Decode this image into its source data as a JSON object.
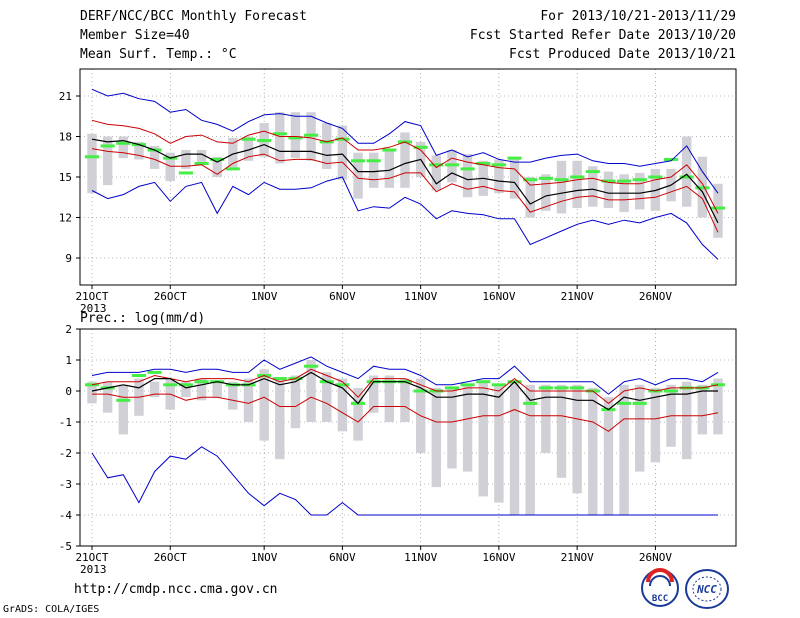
{
  "header": {
    "title": "DERF/NCC/BCC Monthly Forecast",
    "member": "Member Size=40",
    "variable": "Mean Surf. Temp.: °C",
    "period": "For 2013/10/21-2013/11/29",
    "start": "Fcst Started Refer Date 2013/10/20",
    "produced": "Fcst Produced Date 2013/10/21"
  },
  "footer": {
    "url": "http://cmdp.ncc.cma.gov.cn",
    "credit": "GrADS: COLA/IGES",
    "logo1": "BCC",
    "logo2": "NCC"
  },
  "colors": {
    "max": "#0000cc",
    "pct": "#cc0000",
    "mean": "#000000",
    "box": "#d0d0d6",
    "obs": "#44ee44",
    "grid": "#777777"
  },
  "chart_data": [
    {
      "type": "line",
      "ylabel": "Mean Surf. Temp.: °C",
      "ylim": [
        7,
        23
      ],
      "yticks": [
        9,
        12,
        15,
        18,
        21
      ],
      "xticks": [
        {
          "day": 0,
          "label": "21OCT"
        },
        {
          "day": 5,
          "label": "26OCT"
        },
        {
          "day": 11,
          "label": "1NOV"
        },
        {
          "day": 16,
          "label": "6NOV"
        },
        {
          "day": 21,
          "label": "11NOV"
        },
        {
          "day": 26,
          "label": "16NOV"
        },
        {
          "day": 31,
          "label": "21NOV"
        },
        {
          "day": 36,
          "label": "26NOV"
        }
      ],
      "year_label": "2013",
      "grid": true,
      "days": 40,
      "series": {
        "max": [
          21.5,
          21.0,
          21.2,
          20.8,
          20.6,
          19.8,
          20.0,
          19.2,
          18.9,
          18.4,
          19.1,
          19.6,
          19.7,
          19.5,
          19.5,
          19.0,
          18.6,
          17.5,
          17.5,
          18.2,
          19.1,
          18.8,
          16.6,
          17.0,
          16.5,
          16.8,
          16.3,
          16.1,
          16.1,
          16.4,
          16.6,
          16.7,
          16.2,
          16.0,
          16.0,
          15.8,
          16.0,
          16.2,
          17.3,
          15.4,
          13.8
        ],
        "p90": [
          19.2,
          18.9,
          18.8,
          18.6,
          18.2,
          17.5,
          18.0,
          18.1,
          17.6,
          17.5,
          18.1,
          18.4,
          18.0,
          18.0,
          17.9,
          17.6,
          17.9,
          17.0,
          17.0,
          17.2,
          17.6,
          17.0,
          15.7,
          16.4,
          16.1,
          15.9,
          15.7,
          15.6,
          14.4,
          14.5,
          14.6,
          14.8,
          14.9,
          14.6,
          14.5,
          14.5,
          14.8,
          15.0,
          15.9,
          14.5,
          12.3
        ],
        "mean": [
          17.8,
          17.6,
          17.7,
          17.4,
          17.0,
          16.4,
          16.7,
          16.7,
          16.1,
          16.7,
          17.0,
          17.4,
          16.9,
          16.9,
          16.9,
          16.6,
          16.7,
          15.4,
          15.4,
          15.5,
          16.0,
          16.3,
          14.5,
          15.3,
          14.8,
          14.9,
          14.7,
          14.6,
          13.0,
          13.6,
          13.8,
          14.0,
          14.1,
          13.8,
          13.8,
          13.8,
          14.0,
          14.4,
          15.2,
          13.9,
          11.6
        ],
        "p10": [
          17.1,
          16.9,
          16.8,
          16.6,
          16.3,
          15.8,
          15.8,
          15.9,
          15.2,
          16.0,
          16.5,
          16.7,
          16.2,
          16.3,
          16.3,
          16.0,
          16.1,
          14.9,
          14.8,
          14.9,
          15.3,
          15.3,
          13.9,
          14.5,
          14.1,
          14.3,
          14.0,
          13.9,
          12.4,
          12.8,
          13.2,
          13.5,
          13.6,
          13.3,
          13.3,
          13.4,
          13.5,
          13.9,
          14.3,
          13.4,
          10.9
        ],
        "min": [
          14.0,
          13.4,
          13.7,
          14.3,
          14.6,
          13.2,
          14.3,
          14.6,
          12.3,
          14.3,
          13.7,
          14.6,
          14.1,
          14.1,
          14.2,
          14.7,
          15.0,
          12.5,
          12.8,
          12.7,
          13.5,
          13.0,
          11.9,
          12.5,
          12.3,
          12.2,
          11.9,
          11.9,
          10.0,
          10.5,
          11.0,
          11.5,
          11.8,
          11.5,
          11.8,
          11.6,
          12.0,
          12.3,
          11.6,
          10.0,
          8.9
        ],
        "box_top": [
          18.2,
          18.0,
          18.0,
          17.6,
          17.3,
          16.8,
          17.0,
          17.0,
          16.5,
          17.9,
          18.0,
          19.0,
          19.8,
          19.8,
          19.8,
          19.0,
          18.8,
          16.8,
          16.8,
          17.0,
          18.3,
          17.6,
          16.6,
          17.0,
          16.7,
          16.2,
          16.3,
          16.3,
          15.0,
          15.2,
          16.2,
          16.2,
          15.8,
          15.4,
          15.2,
          15.3,
          15.6,
          15.6,
          18.0,
          16.5,
          14.5
        ],
        "box_bot": [
          13.8,
          14.4,
          16.4,
          16.3,
          15.6,
          14.7,
          15.6,
          16.0,
          15.0,
          15.6,
          16.2,
          16.5,
          16.0,
          16.4,
          16.2,
          15.6,
          14.8,
          13.4,
          14.2,
          14.2,
          14.2,
          15.0,
          14.0,
          14.6,
          13.5,
          13.6,
          13.8,
          13.4,
          12.0,
          12.5,
          12.3,
          12.7,
          12.8,
          12.7,
          12.4,
          12.6,
          12.5,
          13.2,
          12.8,
          12.0,
          10.5
        ],
        "obs": [
          16.5,
          17.3,
          17.5,
          17.4,
          17.0,
          16.4,
          15.3,
          16.0,
          16.3,
          15.6,
          17.8,
          17.7,
          18.2,
          17.9,
          18.1,
          17.6,
          17.8,
          16.2,
          16.2,
          17.0,
          17.6,
          17.2,
          15.9,
          15.9,
          15.6,
          16.0,
          15.9,
          16.4,
          14.8,
          14.9,
          14.8,
          15.0,
          15.4,
          14.7,
          14.7,
          14.8,
          15.0,
          16.3,
          15.0,
          14.2,
          12.7
        ]
      }
    },
    {
      "type": "line",
      "ylabel": "Prec.: log(mm/d)",
      "ylim": [
        -5,
        2
      ],
      "yticks": [
        -5,
        -4,
        -3,
        -2,
        -1,
        0,
        1,
        2
      ],
      "xticks": [
        {
          "day": 0,
          "label": "21OCT"
        },
        {
          "day": 5,
          "label": "26OCT"
        },
        {
          "day": 11,
          "label": "1NOV"
        },
        {
          "day": 16,
          "label": "6NOV"
        },
        {
          "day": 21,
          "label": "11NOV"
        },
        {
          "day": 26,
          "label": "16NOV"
        },
        {
          "day": 31,
          "label": "21NOV"
        },
        {
          "day": 36,
          "label": "26NOV"
        }
      ],
      "year_label": "2013",
      "grid": true,
      "days": 40,
      "series": {
        "max": [
          0.5,
          0.6,
          0.6,
          0.6,
          0.7,
          0.7,
          0.6,
          0.7,
          0.7,
          0.6,
          0.6,
          1.0,
          0.7,
          0.9,
          1.1,
          0.8,
          0.6,
          0.4,
          0.8,
          0.7,
          0.7,
          0.5,
          0.2,
          0.2,
          0.3,
          0.4,
          0.4,
          0.8,
          0.3,
          0.3,
          0.3,
          0.3,
          0.3,
          -0.1,
          0.3,
          0.4,
          0.2,
          0.4,
          0.4,
          0.3,
          0.6
        ],
        "p90": [
          0.2,
          0.3,
          0.3,
          0.3,
          0.5,
          0.4,
          0.3,
          0.4,
          0.4,
          0.4,
          0.3,
          0.5,
          0.3,
          0.4,
          0.7,
          0.5,
          0.3,
          -0.2,
          0.4,
          0.4,
          0.4,
          0.2,
          0.0,
          0.0,
          0.1,
          0.1,
          0.0,
          0.4,
          0.0,
          0.0,
          0.0,
          0.0,
          0.0,
          -0.4,
          0.0,
          0.1,
          0.0,
          0.1,
          0.1,
          0.1,
          0.2
        ],
        "mean": [
          0.0,
          0.1,
          0.2,
          0.1,
          0.4,
          0.4,
          0.1,
          0.2,
          0.3,
          0.2,
          0.2,
          0.4,
          0.2,
          0.3,
          0.6,
          0.3,
          0.1,
          -0.4,
          0.3,
          0.3,
          0.3,
          0.1,
          -0.2,
          -0.2,
          -0.1,
          -0.1,
          -0.2,
          0.3,
          -0.3,
          -0.2,
          -0.2,
          -0.3,
          -0.3,
          -0.6,
          -0.2,
          -0.3,
          -0.2,
          -0.1,
          -0.1,
          0.0,
          0.0
        ],
        "p10": [
          -0.1,
          -0.1,
          -0.2,
          -0.2,
          -0.1,
          -0.1,
          -0.3,
          -0.2,
          -0.2,
          -0.3,
          -0.4,
          -0.2,
          -0.5,
          -0.5,
          -0.2,
          -0.4,
          -0.7,
          -1.0,
          -0.5,
          -0.5,
          -0.5,
          -0.8,
          -1.0,
          -1.0,
          -0.9,
          -0.8,
          -0.8,
          -0.6,
          -0.8,
          -0.8,
          -0.8,
          -0.9,
          -1.0,
          -1.3,
          -0.9,
          -0.9,
          -0.9,
          -0.8,
          -0.8,
          -0.8,
          -0.7
        ],
        "min": [
          -2.0,
          -2.8,
          -2.7,
          -3.6,
          -2.6,
          -2.1,
          -2.2,
          -1.8,
          -2.1,
          -2.7,
          -3.3,
          -3.7,
          -3.3,
          -3.5,
          -4.0,
          -4.0,
          -3.6,
          -4.0,
          -4.0,
          -4.0,
          -4.0,
          -4.0,
          -4.0,
          -4.0,
          -4.0,
          -4.0,
          -4.0,
          -4.0,
          -4.0,
          -4.0,
          -4.0,
          -4.0,
          -4.0,
          -4.0,
          -4.0,
          -4.0,
          -4.0,
          -4.0,
          -4.0,
          -4.0,
          -4.0
        ],
        "box_top": [
          0.3,
          0.3,
          0.2,
          0.4,
          0.3,
          0.4,
          0.3,
          0.4,
          0.3,
          0.3,
          0.4,
          0.7,
          0.4,
          0.5,
          1.0,
          0.6,
          0.4,
          0.1,
          0.5,
          0.5,
          0.4,
          0.4,
          0.1,
          0.1,
          0.2,
          0.3,
          0.2,
          0.3,
          0.2,
          0.2,
          0.2,
          0.2,
          0.1,
          -0.2,
          0.2,
          0.2,
          0.1,
          0.2,
          0.3,
          0.2,
          0.4
        ],
        "box_bot": [
          -0.4,
          -0.7,
          -1.4,
          -0.8,
          -0.2,
          -0.6,
          -0.2,
          -0.3,
          -0.2,
          -0.6,
          -1.0,
          -1.6,
          -2.2,
          -1.2,
          -1.0,
          -1.0,
          -1.3,
          -1.6,
          -0.7,
          -1.0,
          -1.0,
          -2.0,
          -3.1,
          -2.5,
          -2.6,
          -3.4,
          -3.6,
          -4.0,
          -4.0,
          -2.0,
          -2.8,
          -3.3,
          -4.0,
          -4.0,
          -4.0,
          -2.6,
          -2.3,
          -1.8,
          -2.2,
          -1.4,
          -1.4
        ],
        "obs": [
          0.2,
          0.1,
          -0.3,
          0.5,
          0.6,
          0.2,
          0.2,
          0.3,
          0.3,
          0.2,
          0.2,
          0.5,
          0.4,
          0.4,
          0.8,
          0.3,
          0.2,
          -0.4,
          0.3,
          0.3,
          0.3,
          0.0,
          0.0,
          0.1,
          0.2,
          0.3,
          0.2,
          0.3,
          -0.4,
          0.1,
          0.1,
          0.1,
          0.0,
          -0.6,
          -0.4,
          -0.4,
          0.0,
          0.0,
          0.1,
          0.1,
          0.2
        ]
      }
    }
  ]
}
